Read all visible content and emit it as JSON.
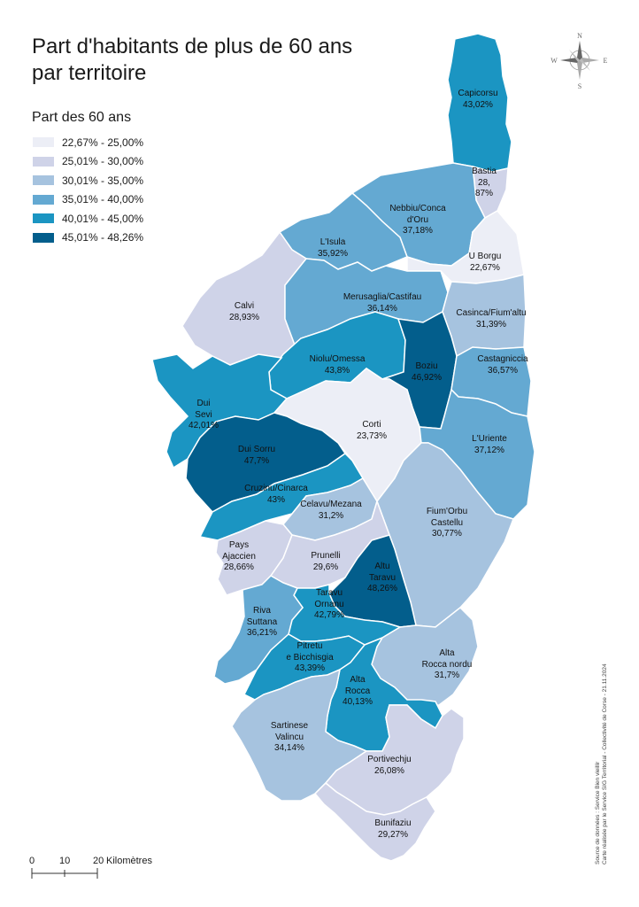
{
  "title": {
    "line1": "Part d'habitants de plus de 60 ans",
    "line2": "par territoire"
  },
  "legend": {
    "title": "Part des 60 ans",
    "classes": [
      {
        "label": "22,67% - 25,00%",
        "color": "#eceef6"
      },
      {
        "label": "25,01% - 30,00%",
        "color": "#cfd3e8"
      },
      {
        "label": "30,01% - 35,00%",
        "color": "#a6c3df"
      },
      {
        "label": "35,01% - 40,00%",
        "color": "#64a9d2"
      },
      {
        "label": "40,01% - 45,00%",
        "color": "#1b95c2"
      },
      {
        "label": "45,01% - 48,26%",
        "color": "#035e8c"
      }
    ]
  },
  "territories": [
    {
      "name": "Capicorsu",
      "value": "43,02%",
      "class": 4
    },
    {
      "name": "Bastia",
      "value": "28,87%",
      "value_display": [
        "28,",
        "87%"
      ],
      "class": 1
    },
    {
      "name": "Nebbiu/Conca d'Oru",
      "lines": [
        "Nebbiu/Conca",
        "d'Oru"
      ],
      "value": "37,18%",
      "class": 3
    },
    {
      "name": "L'Isula",
      "value": "35,92%",
      "class": 3
    },
    {
      "name": "U Borgu",
      "value": "22,67%",
      "class": 0
    },
    {
      "name": "Calvi",
      "value": "28,93%",
      "class": 1
    },
    {
      "name": "Merusaglia/Castifau",
      "value": "36,14%",
      "class": 3
    },
    {
      "name": "Casinca/Fium'altu",
      "value": "31,39%",
      "class": 2
    },
    {
      "name": "Niolu/Omessa",
      "value": "43,8%",
      "class": 4
    },
    {
      "name": "Boziu",
      "value": "46,92%",
      "class": 5
    },
    {
      "name": "Castagniccia",
      "value": "36,57%",
      "class": 3
    },
    {
      "name": "Dui Sevi",
      "lines": [
        "Dui",
        "Sevi"
      ],
      "value": "42,01%",
      "class": 4
    },
    {
      "name": "Corti",
      "value": "23,73%",
      "class": 0
    },
    {
      "name": "L'Uriente",
      "value": "37,12%",
      "class": 3
    },
    {
      "name": "Dui Sorru",
      "value": "47,7%",
      "class": 5
    },
    {
      "name": "Cruzinu/Cinarca",
      "value": "43%",
      "class": 4
    },
    {
      "name": "Celavu/Mezana",
      "value": "31,2%",
      "class": 2
    },
    {
      "name": "Fium'Orbu Castellu",
      "lines": [
        "Fium'Orbu",
        "Castellu"
      ],
      "value": "30,77%",
      "class": 2
    },
    {
      "name": "Pays Ajaccien",
      "lines": [
        "Pays",
        "Ajaccien"
      ],
      "value": "28,66%",
      "class": 1
    },
    {
      "name": "Prunelli",
      "value": "29,6%",
      "class": 1
    },
    {
      "name": "Altu Taravu",
      "lines": [
        "Altu",
        "Taravu"
      ],
      "value": "48,26%",
      "class": 5
    },
    {
      "name": "Taravu Ornanu",
      "lines": [
        "Taravu",
        "Ornanu"
      ],
      "value": "42,79%",
      "class": 4
    },
    {
      "name": "Riva Suttana",
      "lines": [
        "Riva",
        "Suttana"
      ],
      "value": "36,21%",
      "class": 3
    },
    {
      "name": "Pitretu e Bicchisgia",
      "lines": [
        "Pitretu",
        "e Bicchisgia"
      ],
      "value": "43,39%",
      "class": 4
    },
    {
      "name": "Alta Rocca nordu",
      "lines": [
        "Alta",
        "Rocca nordu"
      ],
      "value": "31,7%",
      "class": 2
    },
    {
      "name": "Alta Rocca",
      "lines": [
        "Alta",
        "Rocca"
      ],
      "value": "40,13%",
      "class": 4
    },
    {
      "name": "Sartinese Valincu",
      "lines": [
        "Sartinese",
        "Valincu"
      ],
      "value": "34,14%",
      "class": 2
    },
    {
      "name": "Portivechju",
      "value": "26,08%",
      "class": 1
    },
    {
      "name": "Bunifaziu",
      "value": "29,27%",
      "class": 1
    }
  ],
  "compass": {
    "n": "N",
    "s": "S",
    "e": "E",
    "w": "W"
  },
  "scale": {
    "ticks": [
      "0",
      "10",
      "20"
    ],
    "unit": "Kilomètres"
  },
  "source": {
    "line1": "Source de données : Service Bien vieillir",
    "line2": "Carte réalisée par le Service SIG Territorial - Collectivité de Corse - 21.11.2024"
  }
}
